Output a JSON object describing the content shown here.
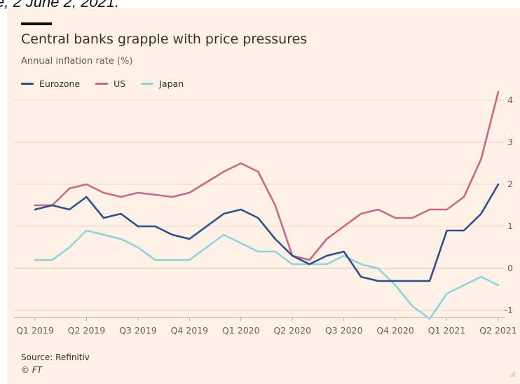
{
  "caption_fragment": "e, 2 June 2, 2021.",
  "chart_data": {
    "type": "line",
    "title": "Central banks grapple with price pressures",
    "subtitle": "Annual inflation rate (%)",
    "xlabel": "",
    "ylabel": "",
    "ylim": [
      -1.1,
      4.3
    ],
    "yticks": [
      -1,
      0,
      1,
      2,
      3,
      4
    ],
    "ytick_labels": [
      "-1",
      "0",
      "1",
      "2",
      "3",
      "4"
    ],
    "x_tick_labels": [
      "Q1 2019",
      "Q2 2019",
      "Q3 2019",
      "Q4 2019",
      "Q1 2020",
      "Q2 2020",
      "Q3 2020",
      "Q4 2020",
      "Q1 2021",
      "Q2 2021"
    ],
    "x": [
      "2019-01",
      "2019-02",
      "2019-03",
      "2019-04",
      "2019-05",
      "2019-06",
      "2019-07",
      "2019-08",
      "2019-09",
      "2019-10",
      "2019-11",
      "2019-12",
      "2020-01",
      "2020-02",
      "2020-03",
      "2020-04",
      "2020-05",
      "2020-06",
      "2020-07",
      "2020-08",
      "2020-09",
      "2020-10",
      "2020-11",
      "2020-12",
      "2021-01",
      "2021-02",
      "2021-03",
      "2021-04"
    ],
    "grid": true,
    "legend_position": "top-left",
    "series": [
      {
        "name": "Eurozone",
        "color": "#2F4F8A",
        "values": [
          1.4,
          1.5,
          1.4,
          1.7,
          1.2,
          1.3,
          1.0,
          1.0,
          0.8,
          0.7,
          1.0,
          1.3,
          1.4,
          1.2,
          0.7,
          0.3,
          0.1,
          0.3,
          0.4,
          -0.2,
          -0.3,
          -0.3,
          -0.3,
          -0.3,
          0.9,
          0.9,
          1.3,
          2.0
        ]
      },
      {
        "name": "US",
        "color": "#C9678B",
        "values": [
          1.5,
          1.5,
          1.9,
          2.0,
          1.8,
          1.7,
          1.8,
          1.75,
          1.7,
          1.8,
          2.05,
          2.3,
          2.5,
          2.3,
          1.5,
          0.3,
          0.2,
          0.7,
          1.0,
          1.3,
          1.4,
          1.2,
          1.2,
          1.4,
          1.4,
          1.7,
          2.6,
          4.2
        ]
      },
      {
        "name": "Japan",
        "color": "#8FD2DC",
        "values": [
          0.2,
          0.2,
          0.5,
          0.9,
          0.8,
          0.7,
          0.5,
          0.2,
          0.2,
          0.2,
          0.5,
          0.8,
          0.6,
          0.4,
          0.4,
          0.1,
          0.1,
          0.1,
          0.3,
          0.1,
          0.0,
          -0.4,
          -0.9,
          -1.2,
          -0.6,
          -0.4,
          -0.2,
          -0.4
        ]
      }
    ]
  },
  "footer": {
    "source": "Source: Refinitiv",
    "copyright": "© FT"
  },
  "colors": {
    "background": "#FFF1E5",
    "grid": "#E6D9CE",
    "text": "#33302e",
    "muted_text": "#66605c"
  }
}
